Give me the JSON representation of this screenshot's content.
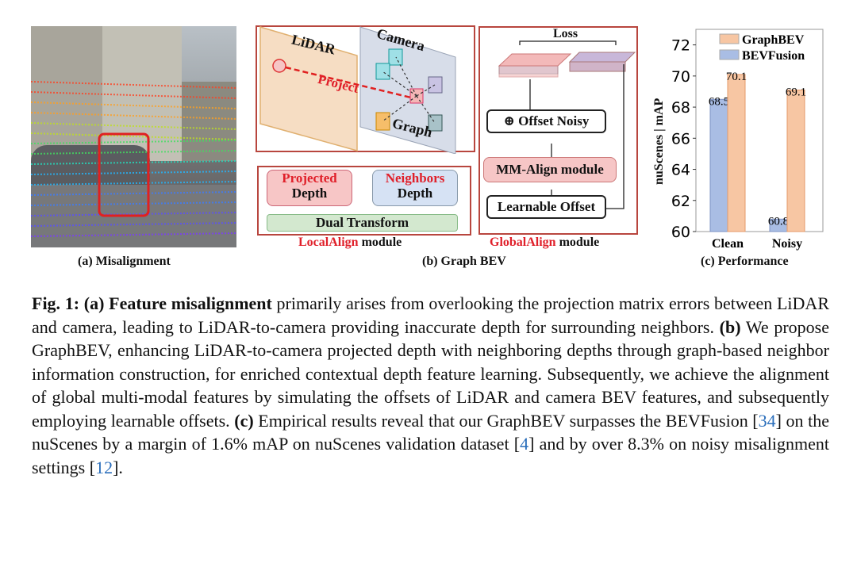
{
  "panel_a": {
    "caption": "(a)  Misalignment"
  },
  "panel_b": {
    "lidar_label": "LiDAR",
    "camera_label": "Camera",
    "project_label": "Project",
    "graph_label": "Graph",
    "projected_label": "Projected",
    "projected_depth": "Depth",
    "neighbors_label": "Neighbors",
    "neighbors_depth": "Depth",
    "dual_transform": "Dual Transform",
    "localalign_red": "LocalAlign",
    "localalign_rest": " module",
    "loss_label": "Loss",
    "offset_noisy": "Offset Noisy",
    "oplus": "⊕",
    "mm_align": "MM-Align module",
    "learnable_offset": "Learnable Offset",
    "globalalign_red": "GlobalAlign",
    "globalalign_rest": " module",
    "caption": "(b) Graph BEV"
  },
  "chart_data": {
    "type": "bar",
    "categories": [
      "Clean",
      "Noisy"
    ],
    "series": [
      {
        "name": "BEVFusion",
        "values": [
          68.5,
          60.8
        ],
        "color": "#a9bde4"
      },
      {
        "name": "GraphBEV",
        "values": [
          70.1,
          69.1
        ],
        "color": "#f7c6a3"
      }
    ],
    "ylabel": "nuScenes | mAP",
    "ylim": [
      60,
      73
    ],
    "yticks": [
      "60",
      "62",
      "64",
      "66",
      "68",
      "70",
      "72"
    ],
    "data_labels": [
      "68.5",
      "60.8",
      "70.1",
      "69.1"
    ],
    "legend": [
      "GraphBEV",
      "BEVFusion"
    ],
    "legend_position": "top-right",
    "title": "(c) Performance"
  },
  "caption": {
    "fig": "Fig. 1:",
    "a_label": "(a)",
    "a_bold": "Feature misalignment",
    "a_text": " primarily arises from overlooking the projection matrix errors between LiDAR and camera, leading to LiDAR-to-camera providing inaccurate depth for surrounding neighbors. ",
    "b_label": "(b)",
    "b_text": " We propose GraphBEV, enhancing LiDAR-to-camera projected depth with neighboring depths through graph-based neighbor information construction, for enriched contextual depth feature learning. Subsequently, we achieve the alignment of global multi-modal features by simulating the offsets of LiDAR and camera BEV features, and subsequently employing learnable offsets. ",
    "c_label": "(c)",
    "c_text1": " Empirical results reveal that our GraphBEV surpasses the BEVFusion [",
    "ref1": "34",
    "c_text2": "] on the nuScenes by a margin of 1.6% mAP on nuScenes validation dataset [",
    "ref2": "4",
    "c_text3": "] and by over 8.3% on noisy misalignment settings [",
    "ref3": "12",
    "c_text4": "]."
  }
}
